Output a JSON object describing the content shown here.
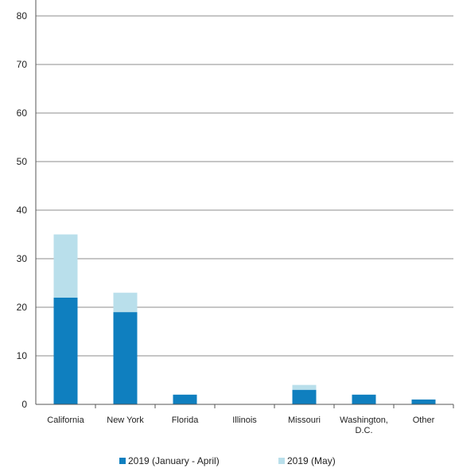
{
  "chart_data": {
    "type": "bar",
    "stacked": true,
    "categories": [
      "California",
      "New York",
      "Florida",
      "Illinois",
      "Missouri",
      "Washington, D.C.",
      "Other"
    ],
    "category_lines": [
      [
        "California"
      ],
      [
        "New York"
      ],
      [
        "Florida"
      ],
      [
        "Illinois"
      ],
      [
        "Missouri"
      ],
      [
        "Washington,",
        "D.C."
      ],
      [
        "Other"
      ]
    ],
    "series": [
      {
        "name": "2019 (January - April)",
        "values": [
          22,
          19,
          2,
          0,
          3,
          2,
          1
        ],
        "color": "#0f7fbf"
      },
      {
        "name": "2019 (May)",
        "values": [
          13,
          4,
          0,
          0,
          1,
          0,
          0
        ],
        "color": "#b9dfeb"
      }
    ],
    "yticks": [
      "0",
      "10",
      "20",
      "30",
      "40",
      "50",
      "60",
      "70",
      "80"
    ],
    "ylim": [
      0,
      80
    ],
    "grid": true,
    "legend_position": "bottom"
  }
}
